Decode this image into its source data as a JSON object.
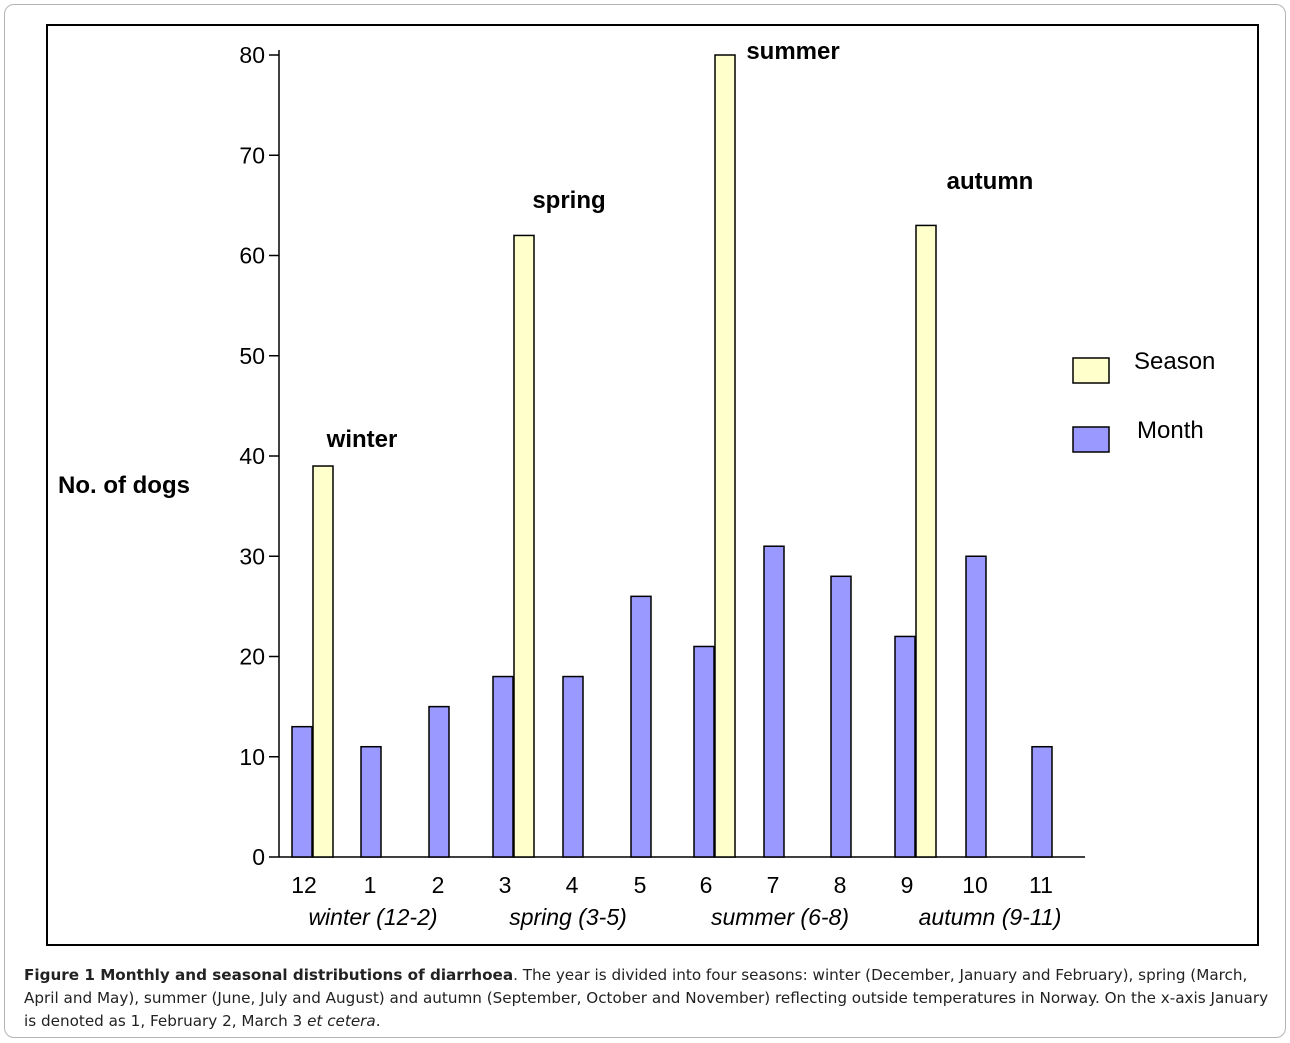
{
  "chart_data": {
    "type": "bar",
    "title": "",
    "ylabel": "No. of dogs",
    "xlabel": "",
    "ylim": [
      0,
      80
    ],
    "yticks": [
      0,
      10,
      20,
      30,
      40,
      50,
      60,
      70,
      80
    ],
    "categories": [
      "12",
      "1",
      "2",
      "3",
      "4",
      "5",
      "6",
      "7",
      "8",
      "9",
      "10",
      "11"
    ],
    "series": [
      {
        "name": "Month",
        "color": "#9999ff",
        "values": [
          13,
          11,
          15,
          18,
          18,
          26,
          21,
          31,
          28,
          22,
          30,
          11
        ]
      },
      {
        "name": "Season",
        "color": "#ffffcc",
        "values": [
          39,
          null,
          null,
          62,
          null,
          null,
          80,
          null,
          null,
          63,
          null,
          null
        ]
      }
    ],
    "season_labels": [
      {
        "text": "winter",
        "category": "12"
      },
      {
        "text": "spring",
        "category": "3"
      },
      {
        "text": "summer",
        "category": "6"
      },
      {
        "text": "autumn",
        "category": "9"
      }
    ],
    "season_groups": [
      "winter (12-2)",
      "spring (3-5)",
      "summer (6-8)",
      "autumn (9-11)"
    ],
    "legend": {
      "position": "right",
      "entries": [
        "Season",
        "Month"
      ]
    },
    "grid": false
  },
  "caption": {
    "title": "Figure 1 Monthly and seasonal distributions of diarrhoea",
    "text_before": ". The year is divided into four seasons: winter (December, January and February), spring (March, April and May), summer (June, July and August) and autumn (September, October and November) reflecting outside temperatures in Norway. On the x-axis January is denoted as 1, February 2, March 3 ",
    "italic": "et cetera",
    "text_after": "."
  }
}
